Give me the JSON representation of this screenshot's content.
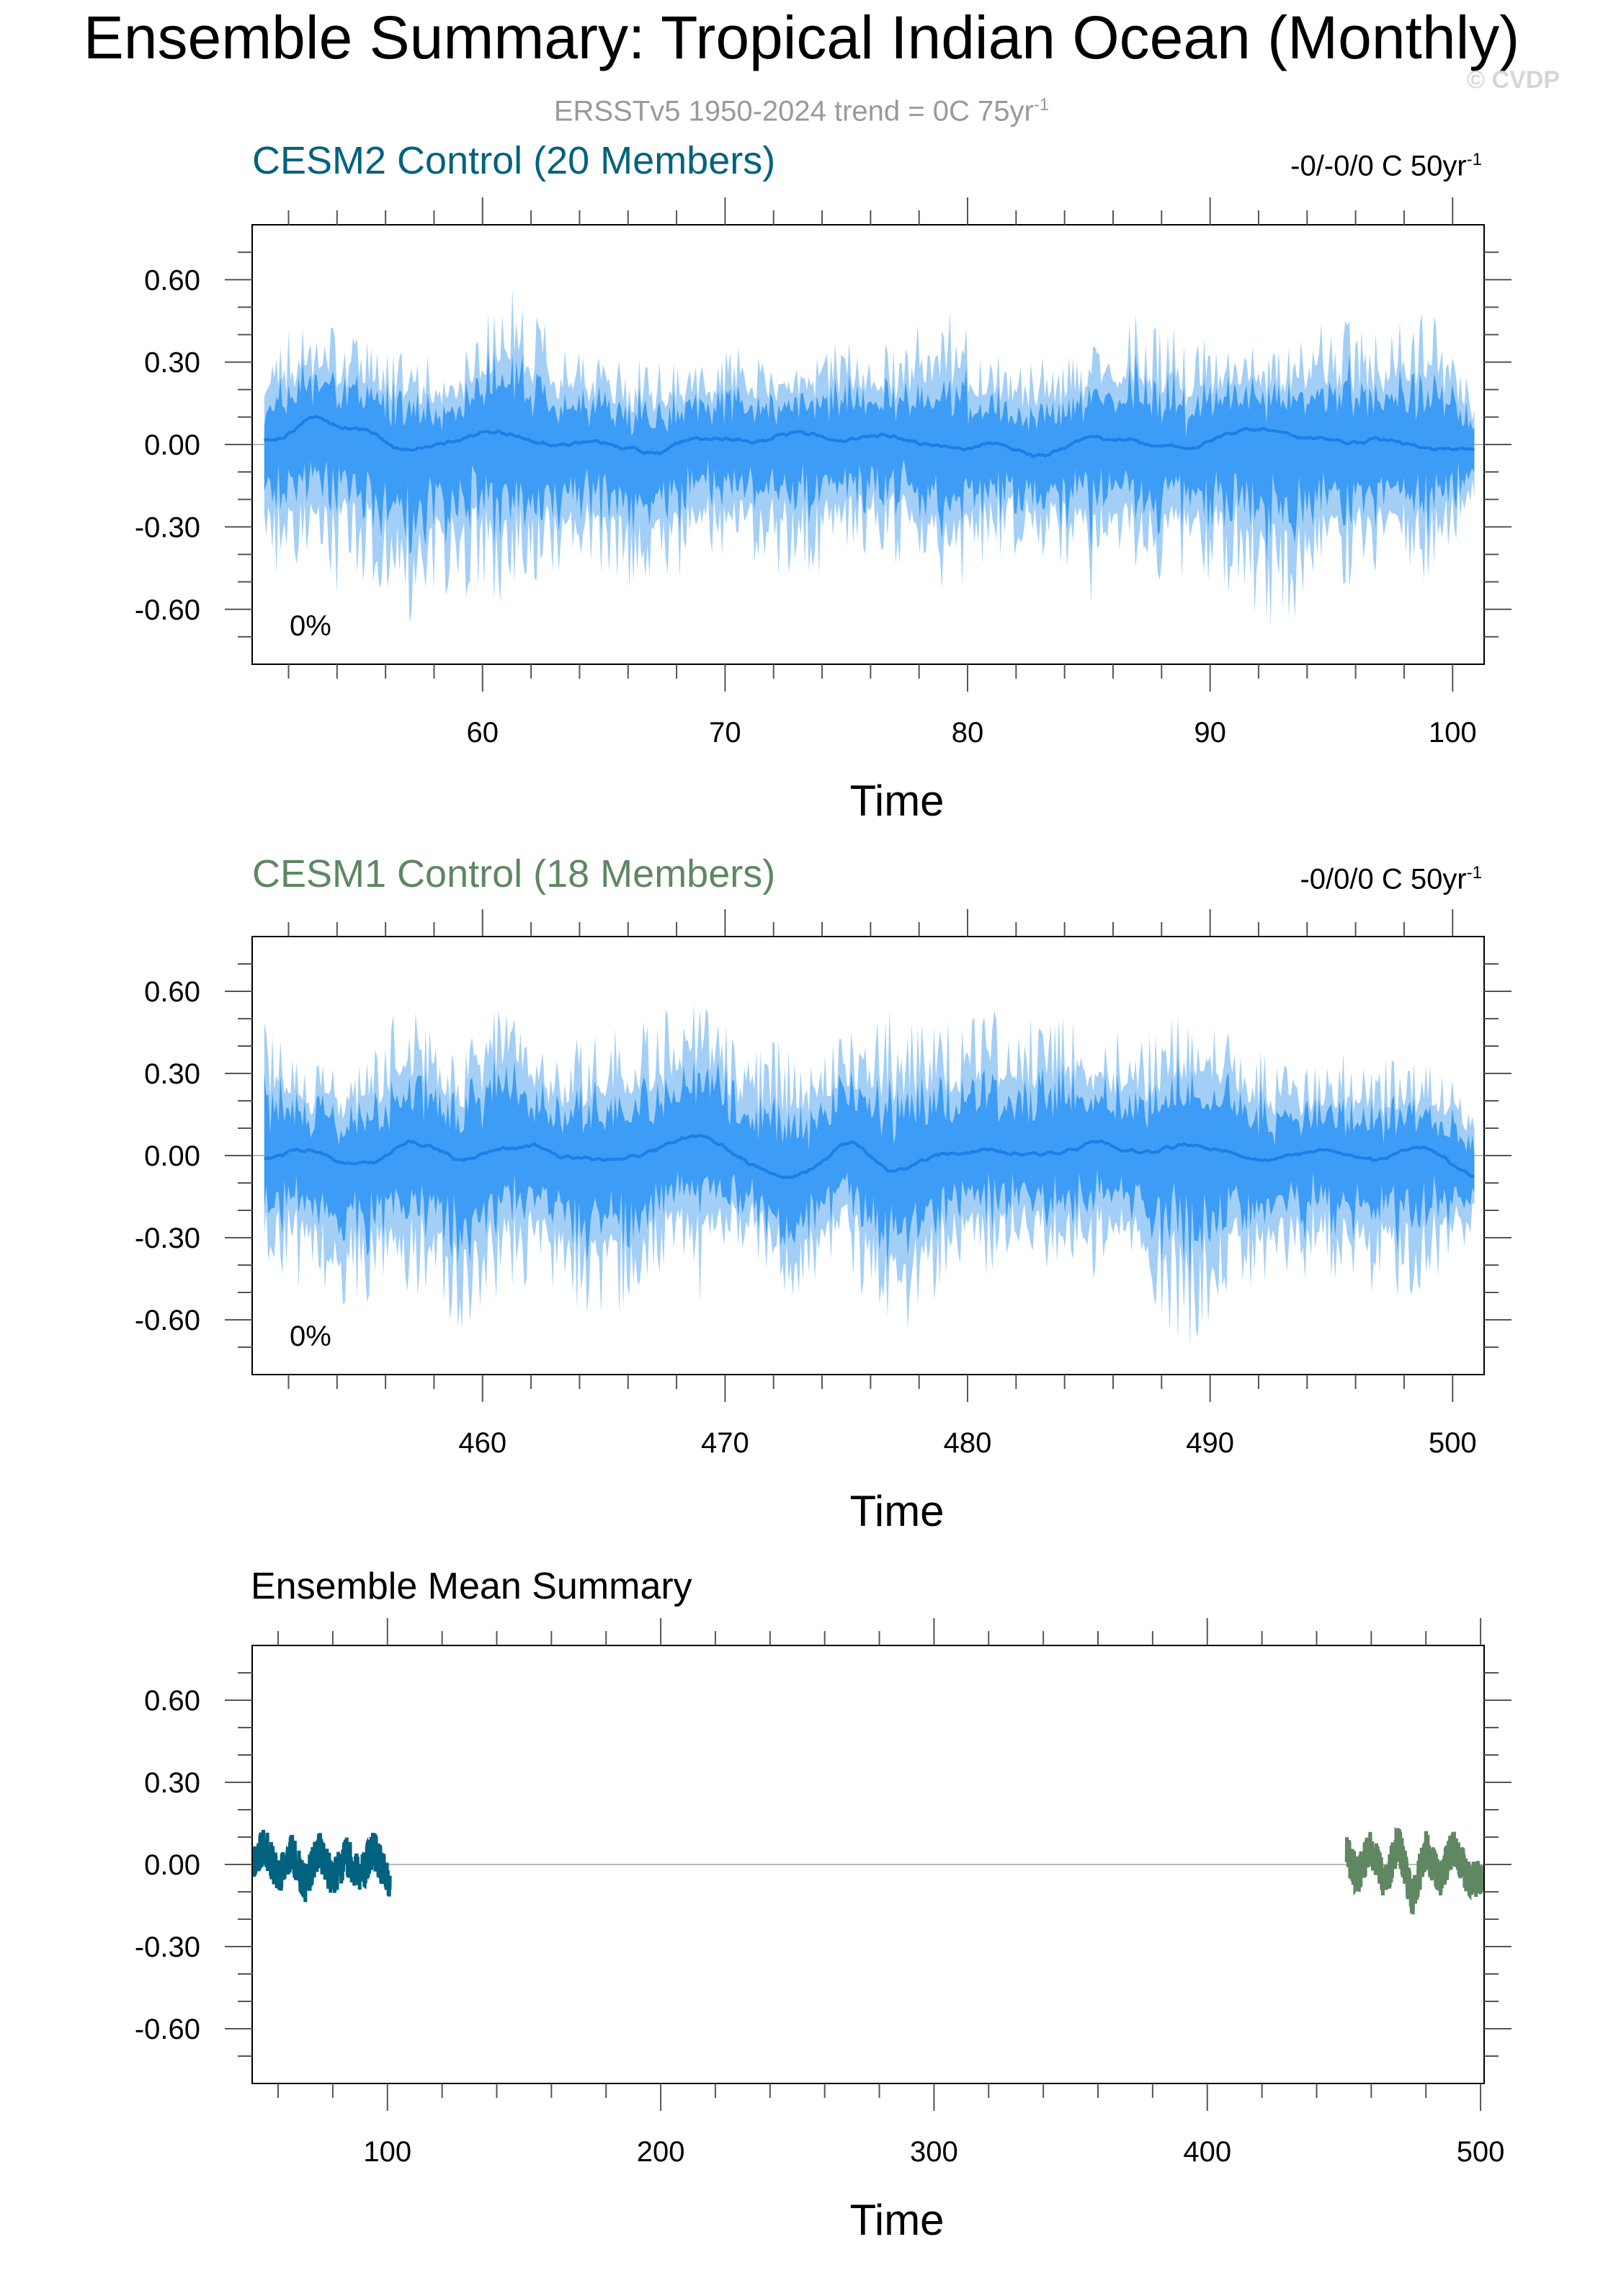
{
  "header": {
    "title": "Ensemble Summary: Tropical Indian Ocean (Monthly)",
    "subtitle_prefix": "ERSSTv5 1950-2024 trend = 0C 75yr",
    "subtitle_sup": "-1",
    "watermark": "© CVDP"
  },
  "colors": {
    "cesm2": "#00627f",
    "cesm1": "#5f8762",
    "band_outer": "#a3cff7",
    "band_inner": "#3d9cf5",
    "mean_line": "#1b7fe6"
  },
  "chart_data": [
    {
      "type": "area",
      "title": "CESM2 Control (20 Members)",
      "trend_label": "-0/-0/0 C 50yr",
      "trend_label_sup": "-1",
      "annotation": "0%",
      "xlabel": "Time",
      "ylabel": "",
      "xlim": [
        50.5,
        101.3
      ],
      "ylim": [
        -0.8,
        0.8
      ],
      "x_ticks": [
        60,
        70,
        80,
        90,
        100
      ],
      "y_ticks": [
        "0.60",
        "0.30",
        "0.00",
        "-0.30",
        "-0.60"
      ],
      "y_tick_values": [
        0.6,
        0.3,
        0.0,
        -0.3,
        -0.6
      ],
      "series": [
        {
          "name": "",
          "x_range": [
            51.0,
            100.9
          ],
          "seed": 11,
          "mean_amp": 0.05,
          "inner_amp": 0.15,
          "outer_amp": 0.28,
          "x": [
            51,
            53,
            55,
            57,
            59,
            61,
            63,
            65,
            67,
            69,
            71,
            73,
            75,
            77,
            79,
            81,
            83,
            85,
            87,
            89,
            91,
            93,
            95,
            97,
            99,
            100.9
          ],
          "mean": [
            0.0,
            0.1,
            0.04,
            -0.03,
            0.02,
            0.03,
            -0.01,
            0.02,
            -0.04,
            0.04,
            0.0,
            0.04,
            0.02,
            0.03,
            -0.03,
            0.02,
            -0.05,
            0.02,
            0.0,
            -0.03,
            0.06,
            0.04,
            0.01,
            0.03,
            -0.02,
            -0.01
          ],
          "outer_max": [
            0.38,
            0.45,
            0.4,
            0.38,
            0.3,
            0.6,
            0.4,
            0.35,
            0.3,
            0.33,
            0.38,
            0.33,
            0.4,
            0.36,
            0.53,
            0.35,
            0.32,
            0.37,
            0.5,
            0.4,
            0.43,
            0.36,
            0.48,
            0.4,
            0.53,
            0.2
          ],
          "outer_min": [
            -0.46,
            -0.6,
            -0.5,
            -0.68,
            -0.55,
            -0.62,
            -0.5,
            -0.55,
            -0.55,
            -0.5,
            -0.45,
            -0.5,
            -0.45,
            -0.44,
            -0.6,
            -0.42,
            -0.4,
            -0.58,
            -0.5,
            -0.5,
            -0.55,
            -0.74,
            -0.55,
            -0.52,
            -0.5,
            -0.25
          ]
        }
      ]
    },
    {
      "type": "area",
      "title": "CESM1 Control (18 Members)",
      "trend_label": "-0/0/0 C 50yr",
      "trend_label_sup": "-1",
      "annotation": "0%",
      "xlabel": "Time",
      "ylabel": "",
      "xlim": [
        450.5,
        501.3
      ],
      "ylim": [
        -0.8,
        0.8
      ],
      "x_ticks": [
        460,
        470,
        480,
        490,
        500
      ],
      "y_ticks": [
        "0.60",
        "0.30",
        "0.00",
        "-0.30",
        "-0.60"
      ],
      "y_tick_values": [
        0.6,
        0.3,
        0.0,
        -0.3,
        -0.6
      ],
      "series": [
        {
          "name": "",
          "x_range": [
            451.0,
            500.9
          ],
          "seed": 29,
          "mean_amp": 0.05,
          "inner_amp": 0.15,
          "outer_amp": 0.28,
          "x": [
            451,
            453,
            455,
            457,
            459,
            461,
            463,
            465,
            467,
            469,
            471,
            473,
            475,
            477,
            479,
            481,
            483,
            485,
            487,
            489,
            491,
            493,
            495,
            497,
            499,
            500.9
          ],
          "mean": [
            0.0,
            0.02,
            -0.04,
            0.05,
            -0.02,
            0.05,
            0.0,
            -0.02,
            0.02,
            0.08,
            -0.02,
            -0.1,
            0.06,
            -0.05,
            0.0,
            0.02,
            0.0,
            0.05,
            0.0,
            0.04,
            0.0,
            -0.02,
            0.02,
            -0.01,
            0.03,
            -0.07
          ],
          "outer_max": [
            0.54,
            0.35,
            0.35,
            0.63,
            0.4,
            0.7,
            0.42,
            0.45,
            0.55,
            0.6,
            0.4,
            0.45,
            0.47,
            0.55,
            0.5,
            0.55,
            0.58,
            0.5,
            0.45,
            0.55,
            0.5,
            0.35,
            0.38,
            0.37,
            0.35,
            0.25
          ],
          "outer_min": [
            -0.4,
            -0.55,
            -0.55,
            -0.5,
            -0.72,
            -0.5,
            -0.55,
            -0.66,
            -0.5,
            -0.55,
            -0.35,
            -0.55,
            -0.45,
            -0.7,
            -0.5,
            -0.45,
            -0.4,
            -0.5,
            -0.45,
            -0.74,
            -0.5,
            -0.5,
            -0.45,
            -0.55,
            -0.5,
            -0.3
          ]
        }
      ]
    },
    {
      "type": "line",
      "title": "Ensemble Mean Summary",
      "xlabel": "Time",
      "ylabel": "",
      "xlim": [
        50.5,
        501.3
      ],
      "ylim": [
        -0.8,
        0.8
      ],
      "x_ticks": [
        100,
        200,
        300,
        400,
        500
      ],
      "y_ticks": [
        "0.60",
        "0.30",
        "0.00",
        "-0.30",
        "-0.60"
      ],
      "y_tick_values": [
        0.6,
        0.3,
        0.0,
        -0.3,
        -0.6
      ],
      "series": [
        {
          "name": "CESM2 Control",
          "color": "#00627f",
          "x_range": [
            51.0,
            100.9
          ],
          "seed": 11,
          "amp": 0.07,
          "x": [
            51,
            55,
            60,
            65,
            70,
            75,
            80,
            85,
            90,
            95,
            100.9
          ],
          "values": [
            0.02,
            0.13,
            -0.08,
            0.08,
            -0.13,
            0.1,
            -0.1,
            0.06,
            -0.08,
            0.1,
            -0.15
          ]
        },
        {
          "name": "CESM1 Control",
          "color": "#5f8762",
          "x_range": [
            451.0,
            500.9
          ],
          "seed": 29,
          "amp": 0.07,
          "x": [
            451,
            455,
            460,
            465,
            470,
            475,
            480,
            485,
            490,
            495,
            500.9
          ],
          "values": [
            0.08,
            -0.08,
            0.12,
            -0.12,
            0.14,
            -0.22,
            0.1,
            -0.1,
            0.12,
            -0.08,
            -0.1
          ]
        }
      ]
    }
  ]
}
